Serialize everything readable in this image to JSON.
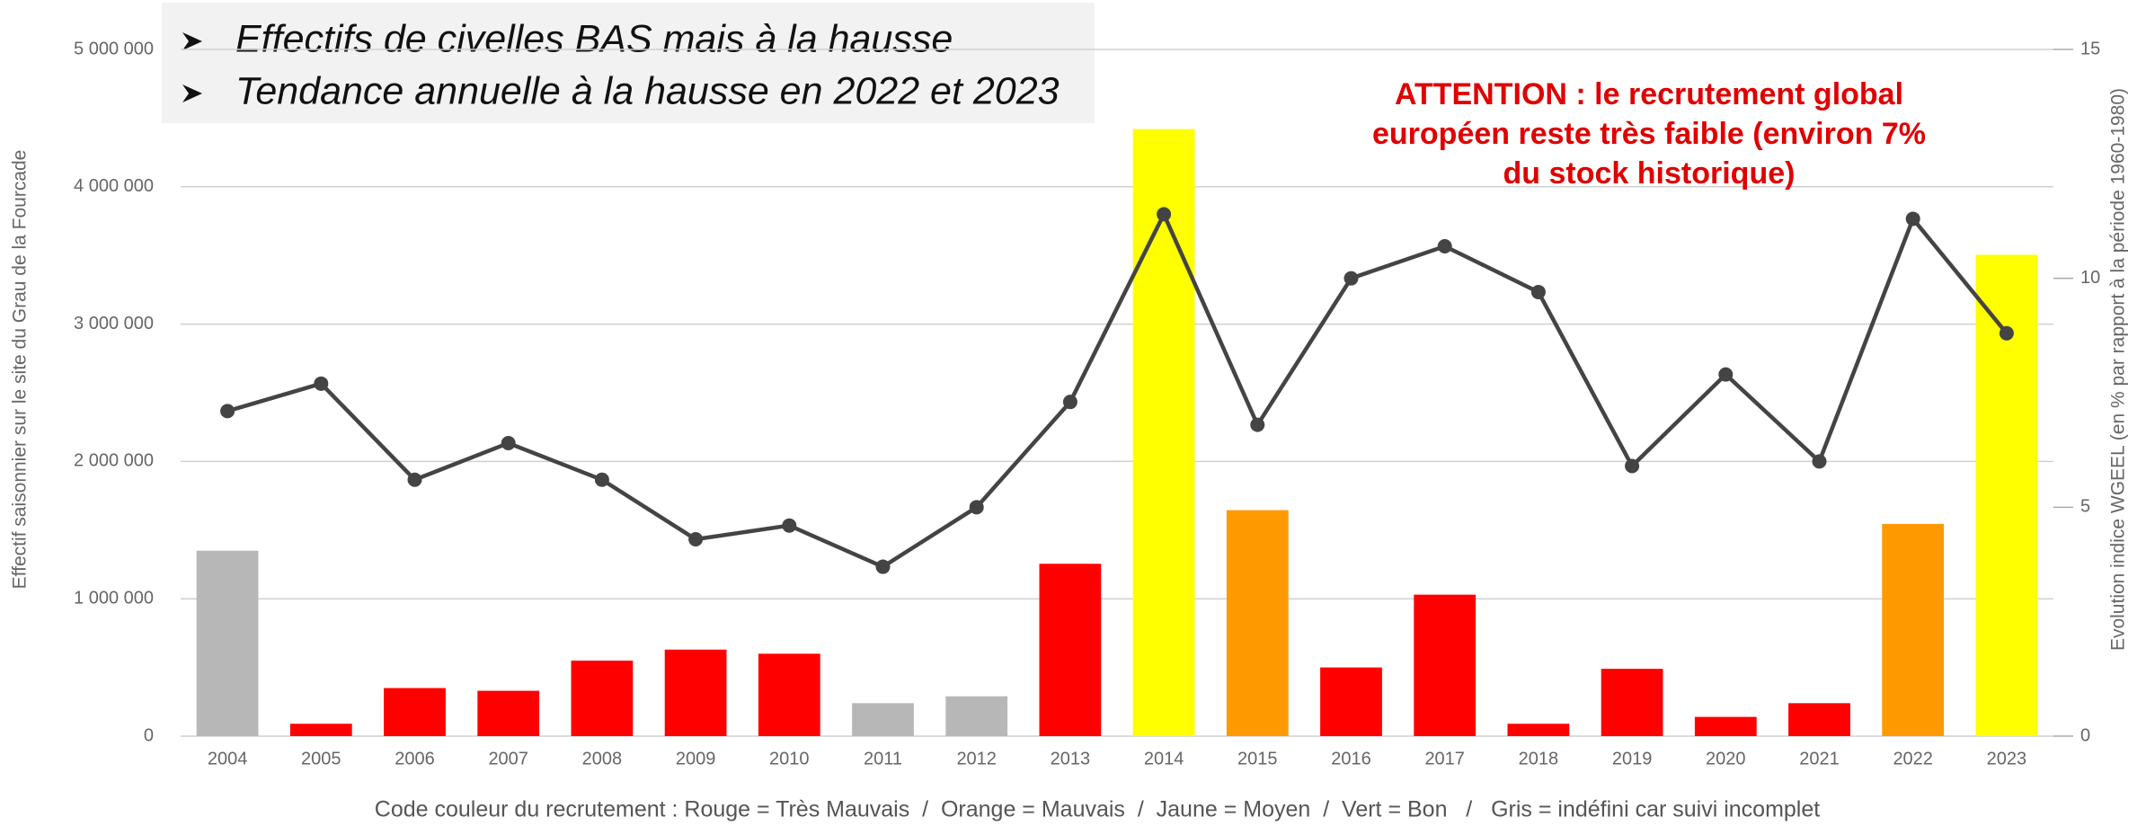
{
  "chart_data": {
    "type": "bar_line",
    "bullets": [
      "Effectifs de civelles BAS mais à la hausse",
      "Tendance annuelle à la hausse en 2022 et 2023"
    ],
    "annotation": [
      "ATTENTION : le recrutement global",
      "européen reste très faible (environ 7%",
      "du stock historique)"
    ],
    "ylabel": "Effectif saisonnier sur le site du Grau de la Fourcade",
    "y2label": "Evolution indice WGEEL (en % par rapport à la période 1960-1980)",
    "footnote": "Code couleur du recrutement : Rouge = Très Mauvais  /  Orange = Mauvais  /  Jaune = Moyen  /  Vert = Bon   /   Gris = indéfini car suivi incomplet",
    "categories": [
      "2004",
      "2005",
      "2006",
      "2007",
      "2008",
      "2009",
      "2010",
      "2011",
      "2012",
      "2013",
      "2014",
      "2015",
      "2016",
      "2017",
      "2018",
      "2019",
      "2020",
      "2021",
      "2022",
      "2023"
    ],
    "series": [
      {
        "type": "bar",
        "values": [
          1350000,
          90000,
          350000,
          330000,
          550000,
          630000,
          600000,
          240000,
          290000,
          1255000,
          4420000,
          1645000,
          500000,
          1030000,
          90000,
          490000,
          140000,
          240000,
          1545000,
          3505000
        ],
        "colors": [
          "#b7b7b7",
          "#ff0000",
          "#ff0000",
          "#ff0000",
          "#ff0000",
          "#ff0000",
          "#ff0000",
          "#b7b7b7",
          "#b7b7b7",
          "#ff0000",
          "#ffff00",
          "#ff9900",
          "#ff0000",
          "#ff0000",
          "#ff0000",
          "#ff0000",
          "#ff0000",
          "#ff0000",
          "#ff9900",
          "#ffff00"
        ]
      },
      {
        "type": "line",
        "axis": "y2",
        "color": "#444444",
        "values": [
          7.1,
          7.7,
          5.6,
          6.4,
          5.6,
          4.3,
          4.6,
          3.7,
          5.0,
          7.3,
          11.4,
          6.8,
          10.0,
          10.7,
          9.7,
          5.9,
          7.9,
          6.0,
          11.3,
          8.8
        ]
      }
    ],
    "ylim": [
      0,
      5000000
    ],
    "yticks": [
      0,
      {
        "value": 1000000,
        "label": "1 000 000"
      },
      {
        "value": 2000000,
        "label": "2 000 000"
      },
      {
        "value": 3000000,
        "label": "3 000 000"
      },
      {
        "value": 4000000,
        "label": "4 000 000"
      },
      {
        "value": 5000000,
        "label": "5 000 000"
      }
    ],
    "y2lim": [
      0,
      15
    ],
    "y2ticks": [
      0,
      5,
      10,
      15
    ],
    "grid": true
  }
}
